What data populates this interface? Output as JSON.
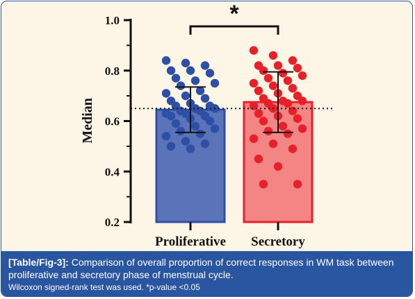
{
  "caption": {
    "tag": "[Table/Fig-3]:",
    "text": "Comparison of overall proportion of correct responses in WM task between proliferative and secretory phase of menstrual cycle.",
    "note": "Wilcoxon signed-rank test was used. *p-value <0.05"
  },
  "colors": {
    "proliferative_bar": "#5b73b8",
    "proliferative_point": "#2d4fa6",
    "secretory_bar": "#f38585",
    "secretory_point": "#e8202a",
    "background": "#fdf5e6",
    "caption_bg": "#2a55a0"
  },
  "chart_data": {
    "type": "bar",
    "categories": [
      "Proliferative",
      "Secretory"
    ],
    "values": [
      0.645,
      0.675
    ],
    "ylabel": "Median",
    "ylim": [
      0.2,
      1.0
    ],
    "yticks": [
      "0.2",
      "0.4",
      "0.6",
      "0.8",
      "1.0"
    ],
    "reference_line": 0.65,
    "error_bars": [
      {
        "low": 0.555,
        "high": 0.735
      },
      {
        "low": 0.555,
        "high": 0.795
      }
    ],
    "significance": {
      "label": "*",
      "between": [
        "Proliferative",
        "Secretory"
      ]
    },
    "points": [
      [
        0.84,
        0.83,
        0.82,
        0.8,
        0.8,
        0.79,
        0.77,
        0.76,
        0.75,
        0.74,
        0.72,
        0.71,
        0.7,
        0.69,
        0.68,
        0.67,
        0.66,
        0.66,
        0.65,
        0.65,
        0.64,
        0.64,
        0.63,
        0.63,
        0.62,
        0.62,
        0.61,
        0.6,
        0.59,
        0.58,
        0.57,
        0.56,
        0.55,
        0.54,
        0.52,
        0.51,
        0.5,
        0.49
      ],
      [
        0.88,
        0.86,
        0.84,
        0.82,
        0.82,
        0.81,
        0.8,
        0.79,
        0.78,
        0.77,
        0.76,
        0.75,
        0.74,
        0.73,
        0.72,
        0.71,
        0.7,
        0.69,
        0.68,
        0.68,
        0.67,
        0.67,
        0.66,
        0.65,
        0.64,
        0.63,
        0.62,
        0.61,
        0.6,
        0.58,
        0.57,
        0.56,
        0.55,
        0.53,
        0.51,
        0.49,
        0.45,
        0.42,
        0.35,
        0.35
      ]
    ]
  }
}
